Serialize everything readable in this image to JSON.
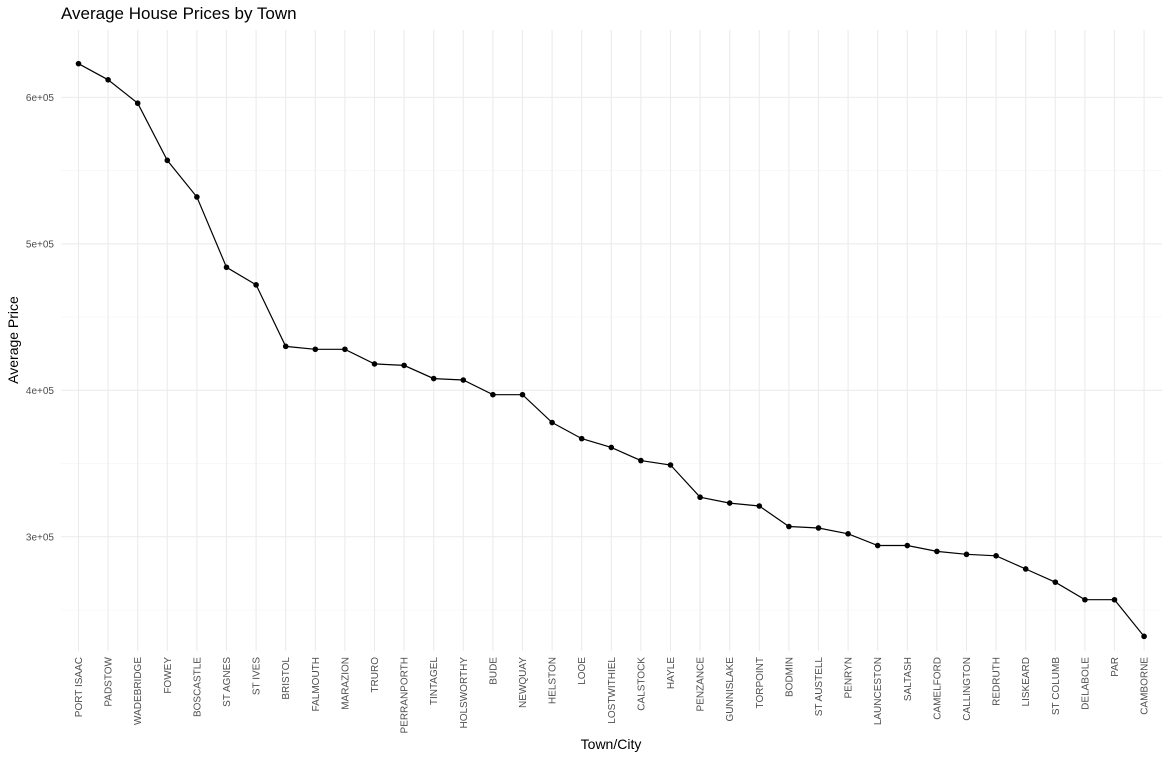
{
  "chart_data": {
    "type": "line",
    "title": "Average House Prices by Town",
    "xlabel": "Town/City",
    "ylabel": "Average Price",
    "categories": [
      "PORT ISAAC",
      "PADSTOW",
      "WADEBRIDGE",
      "FOWEY",
      "BOSCASTLE",
      "ST AGNES",
      "ST IVES",
      "BRISTOL",
      "FALMOUTH",
      "MARAZION",
      "TRURO",
      "PERRANPORTH",
      "TINTAGEL",
      "HOLSWORTHY",
      "BUDE",
      "NEWQUAY",
      "HELSTON",
      "LOOE",
      "LOSTWITHIEL",
      "CALSTOCK",
      "HAYLE",
      "PENZANCE",
      "GUNNISLAKE",
      "TORPOINT",
      "BODMIN",
      "ST AUSTELL",
      "PENRYN",
      "LAUNCESTON",
      "SALTASH",
      "CAMELFORD",
      "CALLINGTON",
      "REDRUTH",
      "LISKEARD",
      "ST COLUMB",
      "DELABOLE",
      "PAR",
      "CAMBORNE"
    ],
    "values": [
      623000,
      612000,
      596000,
      557000,
      532000,
      484000,
      472000,
      430000,
      428000,
      428000,
      418000,
      417000,
      408000,
      407000,
      397000,
      397000,
      378000,
      367000,
      361000,
      352000,
      349000,
      327000,
      323000,
      321000,
      307000,
      306000,
      302000,
      294000,
      294000,
      290000,
      288000,
      287000,
      278000,
      269000,
      257000,
      257000,
      232000
    ],
    "ylim": [
      222000,
      646000
    ],
    "yticks": [
      300000,
      400000,
      500000,
      600000
    ],
    "ytick_labels": [
      "3e+05",
      "4e+05",
      "5e+05",
      "6e+05"
    ],
    "grid": true,
    "legend": "none"
  }
}
